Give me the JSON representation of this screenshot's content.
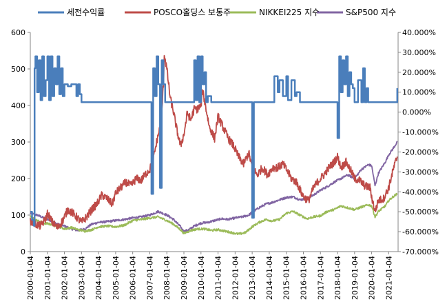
{
  "chart_data": {
    "type": "line",
    "title": "",
    "xlabel": "",
    "ylabel": "",
    "legend_position": "top",
    "y_left": {
      "min": 0,
      "max": 600,
      "ticks": [
        "0",
        "100",
        "200",
        "300",
        "400",
        "500",
        "600"
      ]
    },
    "y_right": {
      "min": -70,
      "max": 40,
      "ticks": [
        "-70.000%",
        "-60.000%",
        "-50.000%",
        "-40.000%",
        "-30.000%",
        "-20.000%",
        "-10.000%",
        "0.000%",
        "10.000%",
        "20.000%",
        "30.000%",
        "40.000%"
      ]
    },
    "x_tick_labels": [
      "2000-01-04",
      "2001-01-04",
      "2002-01-04",
      "2003-01-04",
      "2004-01-04",
      "2005-01-04",
      "2006-01-04",
      "2007-01-04",
      "2008-01-04",
      "2009-01-04",
      "2010-01-04",
      "2011-01-04",
      "2012-01-04",
      "2013-01-04",
      "2014-01-04",
      "2015-01-04",
      "2016-01-04",
      "2017-01-04",
      "2018-01-04",
      "2019-01-04",
      "2020-01-04",
      "2021-01-04"
    ],
    "series": [
      {
        "name": "세전수익률",
        "color": "#4A7EBB",
        "axis": "right",
        "x": [
          2000.0,
          2000.1,
          2000.2,
          2000.25,
          2000.3,
          2000.4,
          2000.5,
          2000.6,
          2000.7,
          2000.8,
          2000.9,
          2001.0,
          2001.1,
          2001.2,
          2001.3,
          2001.4,
          2001.5,
          2001.6,
          2001.7,
          2001.8,
          2001.9,
          2002.0,
          2002.2,
          2002.4,
          2002.6,
          2002.7,
          2002.8,
          2002.9,
          2003.0,
          2004.0,
          2005.0,
          2006.0,
          2007.0,
          2007.1,
          2007.2,
          2007.3,
          2007.4,
          2007.5,
          2007.6,
          2007.7,
          2007.8,
          2007.9,
          2008.0,
          2009.0,
          2009.5,
          2009.6,
          2009.7,
          2009.8,
          2009.9,
          2010.0,
          2010.1,
          2010.2,
          2010.3,
          2010.4,
          2010.6,
          2010.8,
          2011.0,
          2012.0,
          2012.9,
          2013.0,
          2013.1,
          2013.3,
          2013.5,
          2014.0,
          2014.3,
          2014.5,
          2014.6,
          2014.8,
          2015.0,
          2015.1,
          2015.3,
          2015.5,
          2015.6,
          2015.8,
          2016.0,
          2016.1,
          2016.3,
          2016.5,
          2016.7,
          2016.9,
          2017.0,
          2017.5,
          2017.9,
          2018.0,
          2018.1,
          2018.2,
          2018.3,
          2018.4,
          2018.5,
          2018.6,
          2018.7,
          2018.8,
          2018.9,
          2019.0,
          2019.2,
          2019.4,
          2019.5,
          2019.6,
          2019.7,
          2019.8,
          2019.9,
          2020.0,
          2020.2,
          2020.4,
          2020.6,
          2020.8,
          2021.0,
          2021.2,
          2021.4,
          2021.5
        ],
        "values": [
          -50,
          -54,
          -57,
          22,
          28,
          10,
          26,
          6,
          28,
          8,
          16,
          28,
          6,
          28,
          8,
          22,
          14,
          28,
          9,
          22,
          8,
          14,
          13,
          14,
          14,
          8,
          14,
          9,
          5,
          5,
          5,
          5,
          5,
          -41,
          22,
          8,
          28,
          14,
          -38,
          26,
          14,
          5,
          5,
          5,
          5,
          26,
          6,
          28,
          5,
          28,
          14,
          20,
          5,
          8,
          5,
          5,
          5,
          5,
          5,
          -53,
          5,
          5,
          5,
          5,
          18,
          10,
          16,
          8,
          18,
          6,
          16,
          8,
          10,
          5,
          5,
          5,
          5,
          5,
          5,
          5,
          5,
          5,
          5,
          -13,
          28,
          10,
          26,
          14,
          28,
          8,
          20,
          14,
          12,
          5,
          16,
          5,
          22,
          5,
          12,
          5,
          5,
          5,
          5,
          5,
          5,
          5,
          5,
          5,
          5,
          12
        ]
      },
      {
        "name": "POSCO홀딩스 보통주",
        "color": "#BE4B48",
        "axis": "left",
        "x": [
          2000.0,
          2000.3,
          2000.6,
          2000.9,
          2001.0,
          2001.3,
          2001.6,
          2001.9,
          2002.2,
          2002.5,
          2002.8,
          2003.0,
          2003.3,
          2003.6,
          2003.9,
          2004.2,
          2004.5,
          2004.8,
          2005.0,
          2005.3,
          2005.6,
          2005.9,
          2006.2,
          2006.5,
          2006.8,
          2007.0,
          2007.2,
          2007.4,
          2007.6,
          2007.7,
          2007.8,
          2007.85,
          2008.0,
          2008.2,
          2008.4,
          2008.6,
          2008.8,
          2009.0,
          2009.2,
          2009.4,
          2009.6,
          2009.8,
          2010.0,
          2010.1,
          2010.3,
          2010.5,
          2010.8,
          2011.0,
          2011.3,
          2011.6,
          2011.9,
          2012.2,
          2012.5,
          2012.8,
          2013.0,
          2013.3,
          2013.6,
          2013.9,
          2014.2,
          2014.5,
          2014.8,
          2015.0,
          2015.3,
          2015.6,
          2015.9,
          2016.0,
          2016.3,
          2016.6,
          2016.9,
          2017.2,
          2017.5,
          2017.8,
          2018.0,
          2018.2,
          2018.5,
          2018.8,
          2019.0,
          2019.3,
          2019.6,
          2019.9,
          2020.0,
          2020.2,
          2020.4,
          2020.7,
          2021.0,
          2021.3,
          2021.5
        ],
        "values": [
          85,
          75,
          70,
          90,
          105,
          80,
          65,
          85,
          115,
          105,
          90,
          80,
          95,
          115,
          130,
          155,
          145,
          130,
          160,
          175,
          190,
          180,
          200,
          195,
          215,
          225,
          250,
          300,
          340,
          380,
          460,
          540,
          500,
          420,
          380,
          330,
          290,
          320,
          380,
          360,
          390,
          390,
          400,
          440,
          390,
          340,
          310,
          370,
          340,
          310,
          290,
          260,
          240,
          270,
          230,
          210,
          230,
          210,
          230,
          230,
          240,
          225,
          200,
          190,
          160,
          150,
          140,
          175,
          195,
          210,
          230,
          245,
          260,
          230,
          245,
          220,
          200,
          195,
          180,
          175,
          150,
          110,
          140,
          145,
          175,
          230,
          260
        ]
      },
      {
        "name": "NIKKEI225 지수",
        "color": "#9BBB59",
        "axis": "left",
        "x": [
          2000.0,
          2000.4,
          2000.8,
          2001.2,
          2001.6,
          2002.0,
          2002.4,
          2002.8,
          2003.2,
          2003.6,
          2004.0,
          2004.5,
          2005.0,
          2005.5,
          2006.0,
          2006.5,
          2007.0,
          2007.5,
          2008.0,
          2008.4,
          2008.8,
          2009.0,
          2009.4,
          2009.8,
          2010.2,
          2010.6,
          2011.0,
          2011.4,
          2011.8,
          2012.2,
          2012.6,
          2013.0,
          2013.4,
          2013.8,
          2014.2,
          2014.6,
          2015.0,
          2015.4,
          2015.8,
          2016.2,
          2016.6,
          2017.0,
          2017.4,
          2017.8,
          2018.2,
          2018.6,
          2019.0,
          2019.4,
          2019.8,
          2020.0,
          2020.2,
          2020.4,
          2020.8,
          2021.0,
          2021.3,
          2021.5
        ],
        "values": [
          95,
          85,
          78,
          75,
          70,
          62,
          66,
          60,
          56,
          60,
          68,
          70,
          68,
          72,
          85,
          88,
          92,
          95,
          85,
          75,
          60,
          50,
          58,
          62,
          62,
          58,
          60,
          56,
          52,
          48,
          52,
          68,
          80,
          88,
          84,
          88,
          105,
          110,
          100,
          90,
          95,
          98,
          110,
          115,
          125,
          120,
          115,
          122,
          128,
          125,
          95,
          110,
          125,
          140,
          152,
          158
        ]
      },
      {
        "name": "S&P500 지수",
        "color": "#8064A2",
        "axis": "left",
        "x": [
          2000.0,
          2000.4,
          2000.8,
          2001.2,
          2001.6,
          2002.0,
          2002.4,
          2002.8,
          2003.2,
          2003.6,
          2004.0,
          2004.5,
          2005.0,
          2005.5,
          2006.0,
          2006.5,
          2007.0,
          2007.5,
          2008.0,
          2008.4,
          2008.8,
          2009.0,
          2009.3,
          2009.6,
          2010.0,
          2010.4,
          2010.8,
          2011.2,
          2011.6,
          2012.0,
          2012.4,
          2012.8,
          2013.0,
          2013.4,
          2013.8,
          2014.2,
          2014.6,
          2015.0,
          2015.4,
          2015.8,
          2016.2,
          2016.6,
          2017.0,
          2017.4,
          2017.8,
          2018.2,
          2018.6,
          2019.0,
          2019.4,
          2019.8,
          2020.0,
          2020.2,
          2020.4,
          2020.8,
          2021.0,
          2021.3,
          2021.5
        ],
        "values": [
          105,
          100,
          92,
          85,
          75,
          70,
          62,
          58,
          62,
          75,
          80,
          82,
          85,
          88,
          92,
          95,
          100,
          110,
          100,
          88,
          68,
          55,
          60,
          70,
          78,
          80,
          85,
          90,
          88,
          92,
          95,
          100,
          108,
          120,
          130,
          135,
          142,
          148,
          150,
          142,
          145,
          155,
          168,
          178,
          190,
          200,
          210,
          200,
          225,
          238,
          235,
          180,
          215,
          245,
          265,
          285,
          300
        ]
      }
    ]
  }
}
